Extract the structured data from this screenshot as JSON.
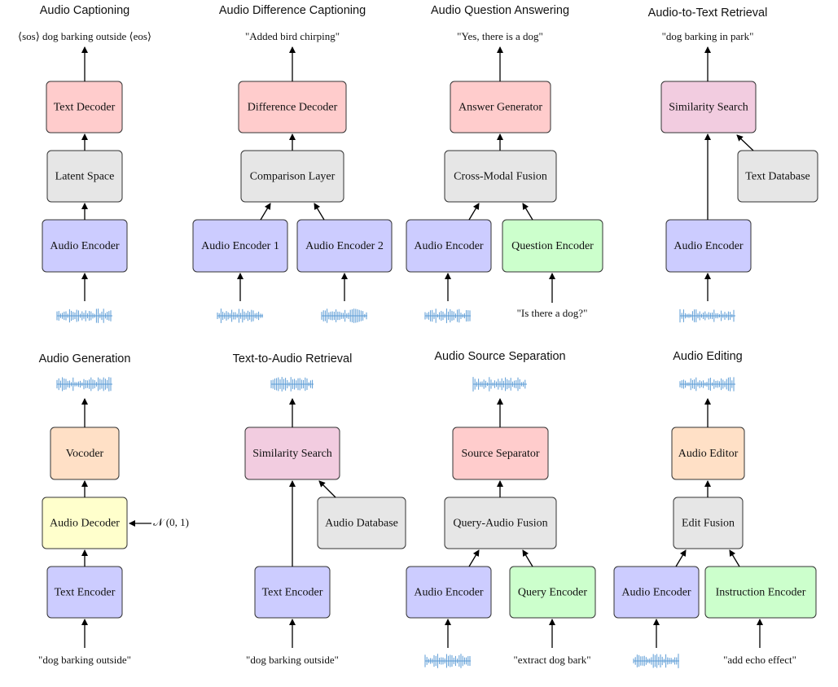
{
  "panels": [
    {
      "title": "Audio Captioning",
      "texts": [
        "⟨sos⟩ dog barking outside ⟨eos⟩"
      ],
      "nodes": [
        {
          "label": "Text Decoder"
        },
        {
          "label": "Latent Space"
        },
        {
          "label": "Audio Encoder"
        }
      ]
    },
    {
      "title": "Audio Difference Captioning",
      "texts": [
        "\"Added bird chirping\""
      ],
      "nodes": [
        {
          "label": "Difference Decoder"
        },
        {
          "label": "Comparison Layer"
        },
        {
          "label": "Audio Encoder 1"
        },
        {
          "label": "Audio Encoder 2"
        }
      ]
    },
    {
      "title": "Audio Question Answering",
      "texts": [
        "\"Yes, there is a dog\"",
        "\"Is there a dog?\""
      ],
      "nodes": [
        {
          "label": "Answer Generator"
        },
        {
          "label": "Cross-Modal Fusion"
        },
        {
          "label": "Audio Encoder"
        },
        {
          "label": "Question Encoder"
        }
      ]
    },
    {
      "title": "Audio-to-Text Retrieval",
      "texts": [
        "\"dog barking in park\""
      ],
      "nodes": [
        {
          "label": "Similarity Search"
        },
        {
          "label": "Text Database"
        },
        {
          "label": "Audio Encoder"
        }
      ]
    },
    {
      "title": "Audio Generation",
      "texts": [
        "\"dog barking outside\"",
        "𝒩 (0, 1)"
      ],
      "nodes": [
        {
          "label": "Vocoder"
        },
        {
          "label": "Audio Decoder"
        },
        {
          "label": "Text Encoder"
        }
      ]
    },
    {
      "title": "Text-to-Audio Retrieval",
      "texts": [
        "\"dog barking outside\""
      ],
      "nodes": [
        {
          "label": "Similarity Search"
        },
        {
          "label": "Audio Database"
        },
        {
          "label": "Text Encoder"
        }
      ]
    },
    {
      "title": "Audio Source Separation",
      "texts": [
        "\"extract dog bark\""
      ],
      "nodes": [
        {
          "label": "Source Separator"
        },
        {
          "label": "Query-Audio Fusion"
        },
        {
          "label": "Audio Encoder"
        },
        {
          "label": "Query Encoder"
        }
      ]
    },
    {
      "title": "Audio Editing",
      "texts": [
        "\"add echo effect\""
      ],
      "nodes": [
        {
          "label": "Audio Editor"
        },
        {
          "label": "Edit Fusion"
        },
        {
          "label": "Audio Encoder"
        },
        {
          "label": "Instruction Encoder"
        }
      ]
    }
  ]
}
